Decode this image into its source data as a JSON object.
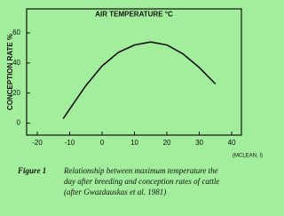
{
  "chart_data": {
    "type": "line",
    "x_label": "AIR TEMPERATURE °C",
    "y_label": "CONCEPTION RATE %",
    "x": [
      -12,
      -5,
      0,
      5,
      10,
      15,
      20,
      25,
      30,
      35
    ],
    "series": [
      {
        "name": "Conception rate",
        "color": "#111111",
        "values": [
          3,
          25,
          38,
          47,
          52,
          54,
          52,
          46,
          37,
          26
        ]
      }
    ],
    "xlim": [
      -23.3,
      43
    ],
    "xticks": [
      -20,
      -10,
      0,
      10,
      20,
      30,
      40
    ],
    "ylim": [
      -8,
      76
    ],
    "yticks": [
      0,
      20,
      40,
      60
    ],
    "note": "(MCLEAN, I)",
    "caption_label": "Figure 1",
    "caption_lines": [
      "Relationship between maximum temperature the",
      "day after breeding and conception rates of cattle",
      "(after Gwazdauskas et al. 1981)"
    ]
  }
}
